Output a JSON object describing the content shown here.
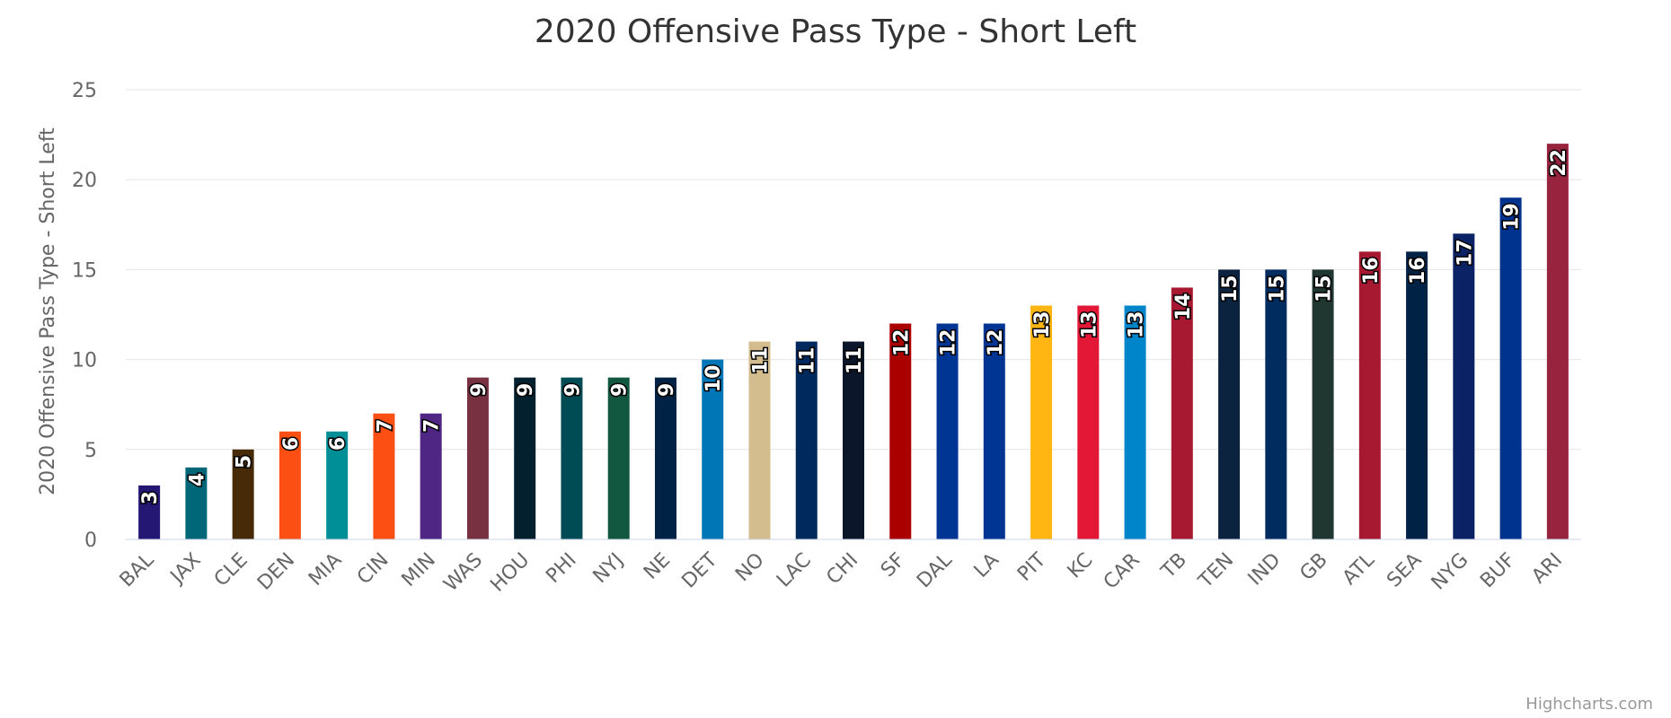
{
  "chart_data": {
    "type": "bar",
    "title": "2020 Offensive Pass Type - Short Left",
    "ylabel": "2020 Offensive Pass Type - Short Left",
    "xlabel": "",
    "ylim": [
      0,
      25
    ],
    "yticks": [
      0,
      5,
      10,
      15,
      20,
      25
    ],
    "grid": true,
    "categories": [
      "BAL",
      "JAX",
      "CLE",
      "DEN",
      "MIA",
      "CIN",
      "MIN",
      "WAS",
      "HOU",
      "PHI",
      "NYJ",
      "NE",
      "DET",
      "NO",
      "LAC",
      "CHI",
      "SF",
      "DAL",
      "LA",
      "PIT",
      "KC",
      "CAR",
      "TB",
      "TEN",
      "IND",
      "GB",
      "ATL",
      "SEA",
      "NYG",
      "BUF",
      "ARI"
    ],
    "values": [
      3,
      4,
      5,
      6,
      6,
      7,
      7,
      9,
      9,
      9,
      9,
      9,
      10,
      11,
      11,
      11,
      12,
      12,
      12,
      13,
      13,
      13,
      14,
      15,
      15,
      15,
      16,
      16,
      17,
      19,
      22
    ],
    "colors": [
      "#241773",
      "#006778",
      "#472A08",
      "#FB4F14",
      "#008E97",
      "#FB4F14",
      "#4F2683",
      "#773141",
      "#03202F",
      "#004C54",
      "#125740",
      "#002244",
      "#0076B6",
      "#D3BC8D",
      "#002A5E",
      "#0B162A",
      "#AA0000",
      "#003594",
      "#003594",
      "#FFB612",
      "#E31837",
      "#0085CA",
      "#A71930",
      "#0C2340",
      "#002C5F",
      "#203731",
      "#A71930",
      "#002244",
      "#0B2265",
      "#00338D",
      "#97233F"
    ]
  },
  "credits": "Highcharts.com"
}
